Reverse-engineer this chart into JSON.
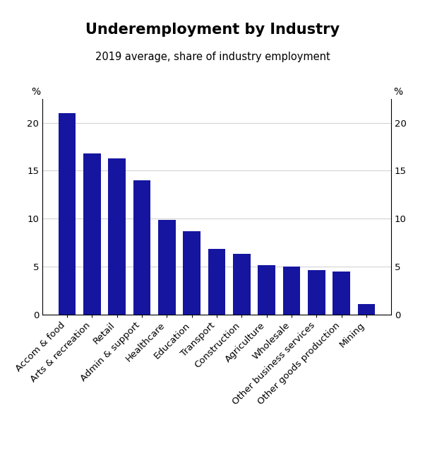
{
  "title": "Underemployment by Industry",
  "subtitle": "2019 average, share of industry employment",
  "categories": [
    "Accom & food",
    "Arts & recreation",
    "Retail",
    "Admin & support",
    "Healthcare",
    "Education",
    "Transport",
    "Construction",
    "Agriculture",
    "Wholesale",
    "Other business services",
    "Other goods production",
    "Mining"
  ],
  "values": [
    21.0,
    16.8,
    16.3,
    14.0,
    9.85,
    8.7,
    6.8,
    6.3,
    5.1,
    4.95,
    4.6,
    4.45,
    1.1
  ],
  "bar_color": "#1515A0",
  "ylabel_left": "%",
  "ylabel_right": "%",
  "ylim": [
    0,
    22.5
  ],
  "yticks": [
    0,
    5,
    10,
    15,
    20
  ],
  "title_fontsize": 15,
  "subtitle_fontsize": 10.5,
  "tick_label_fontsize": 9.5,
  "axis_label_fontsize": 10,
  "background_color": "#ffffff"
}
